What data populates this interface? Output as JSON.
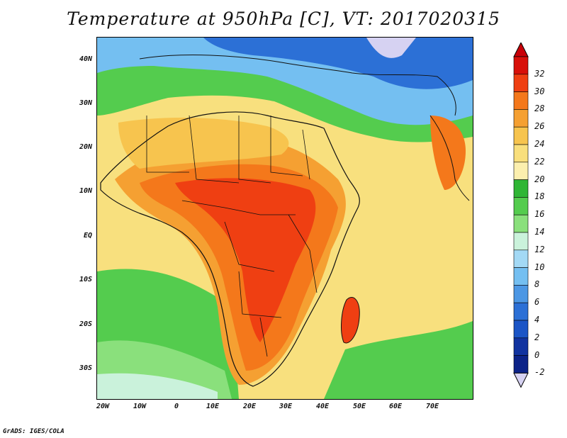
{
  "title": "Temperature at 950hPa [C], VT: 2017020315",
  "credit": "GrADS: IGES/COLA",
  "map": {
    "lon_range": [
      -23,
      80
    ],
    "lat_range": [
      -37,
      45
    ],
    "lat_labels": [
      "40N",
      "30N",
      "20N",
      "10N",
      "EQ",
      "10S",
      "20S",
      "30S"
    ],
    "lat_values": [
      40,
      30,
      20,
      10,
      0,
      -10,
      -20,
      -30
    ],
    "lon_labels": [
      "20W",
      "10W",
      "0",
      "10E",
      "20E",
      "30E",
      "40E",
      "50E",
      "60E",
      "70E"
    ],
    "lon_values": [
      -20,
      -10,
      0,
      10,
      20,
      30,
      40,
      50,
      60,
      70
    ]
  },
  "colorbar": {
    "labels": [
      "32",
      "30",
      "28",
      "26",
      "24",
      "22",
      "20",
      "18",
      "16",
      "14",
      "12",
      "10",
      "8",
      "6",
      "4",
      "2",
      "0",
      "-2"
    ],
    "colors": [
      "#d8100a",
      "#ef3f12",
      "#f4781b",
      "#f5a032",
      "#f7c44e",
      "#f9df7c",
      "#fcefae",
      "#2fb635",
      "#54cc4e",
      "#8ae07c",
      "#caf2db",
      "#a3d9f5",
      "#74bff1",
      "#4c97e4",
      "#2c70d6",
      "#1b55c6",
      "#1133a0",
      "#0c2388"
    ],
    "top_arrow_color": "#c90008",
    "bottom_arrow_color": "#d6d2f2"
  }
}
